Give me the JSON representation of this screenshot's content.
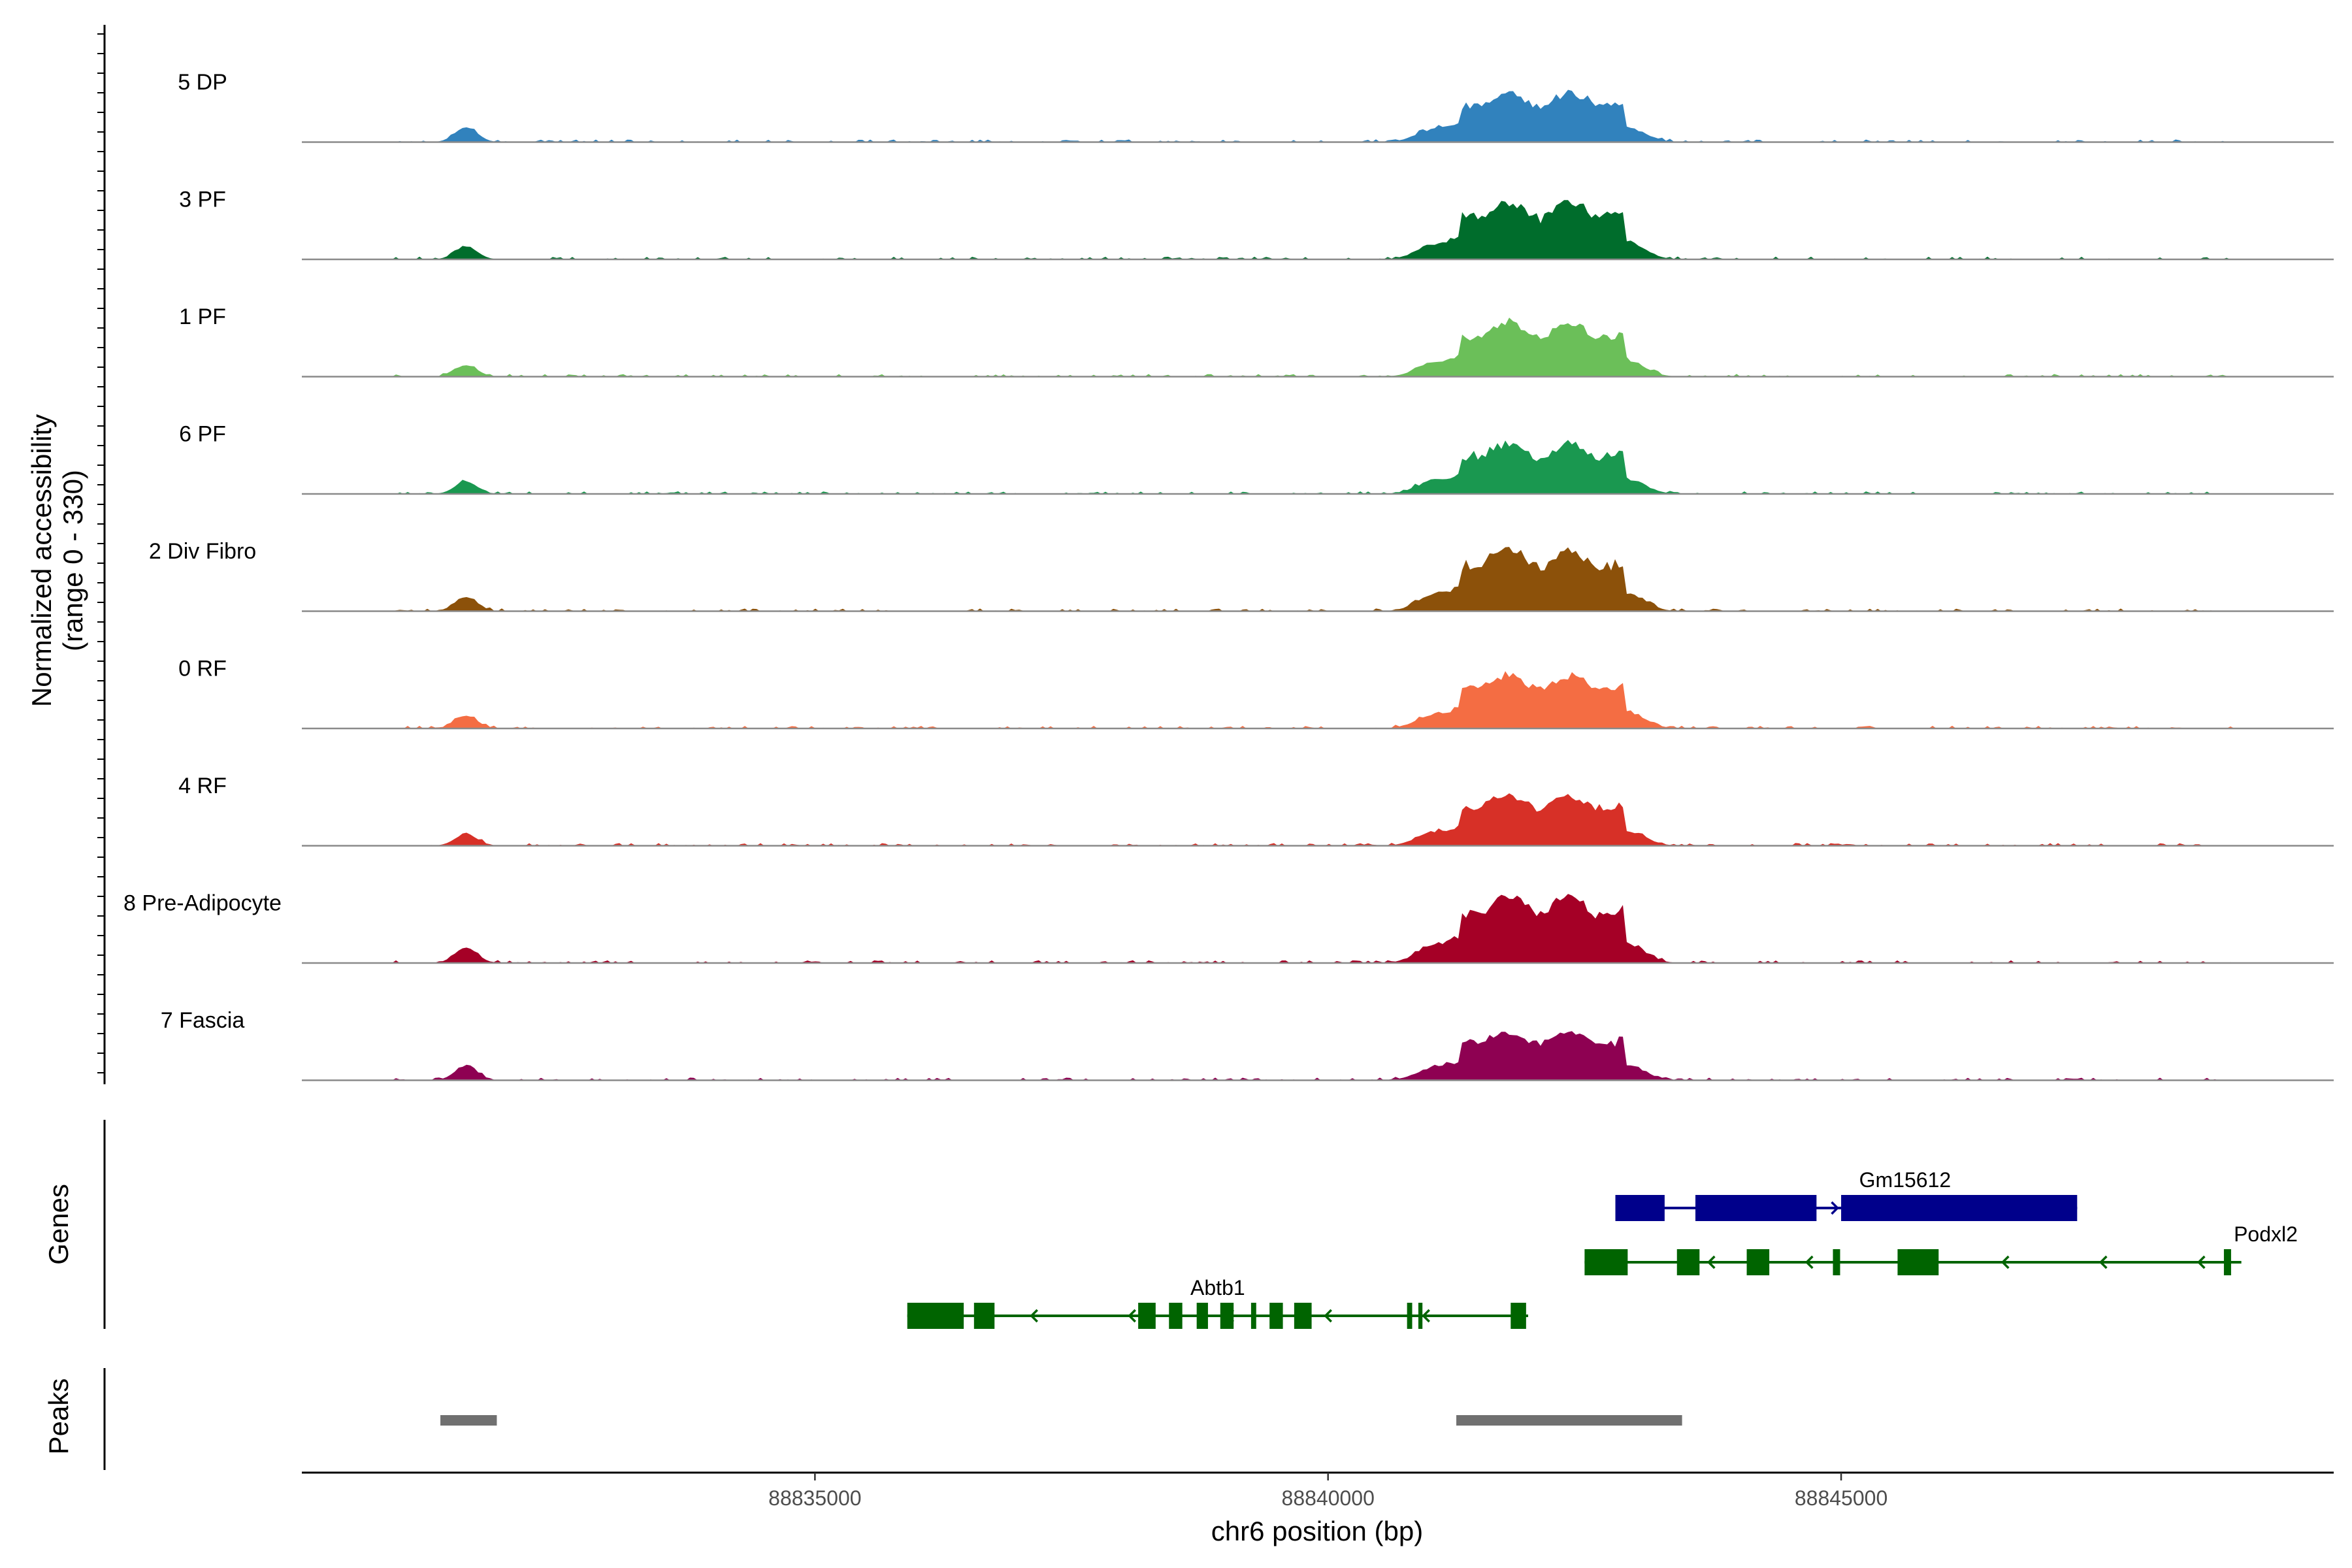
{
  "chart_data": {
    "type": "area",
    "title": "",
    "xlabel": "chr6 position (bp)",
    "xlim": [
      88830000,
      88849800
    ],
    "x_ticks": [
      "88835000",
      "88840000",
      "88845000"
    ],
    "coverage_axis": {
      "label_line1": "Normalized accessibility",
      "label_line2": "(range 0 - 330)",
      "ylim": [
        0,
        330
      ]
    },
    "tracks": [
      {
        "name": "5 DP",
        "color": "#3182bd",
        "peak_max": 165,
        "side_peak": 44
      },
      {
        "name": "3 PF",
        "color": "#006d2c",
        "peak_max": 190,
        "side_peak": 38
      },
      {
        "name": "1 PF",
        "color": "#6bbf59",
        "peak_max": 180,
        "side_peak": 34
      },
      {
        "name": "6 PF",
        "color": "#1a9850",
        "peak_max": 168,
        "side_peak": 36
      },
      {
        "name": "2 Div Fibro",
        "color": "#8c510a",
        "peak_max": 202,
        "side_peak": 42
      },
      {
        "name": "0 RF",
        "color": "#f46d43",
        "peak_max": 180,
        "side_peak": 38
      },
      {
        "name": "4 RF",
        "color": "#d73027",
        "peak_max": 170,
        "side_peak": 34
      },
      {
        "name": "8 Pre-Adipocyte",
        "color": "#a50026",
        "peak_max": 222,
        "side_peak": 46
      },
      {
        "name": "7 Fascia",
        "color": "#8e0152",
        "peak_max": 166,
        "side_peak": 42
      }
    ],
    "genes_panel": {
      "label": "Genes",
      "genes": [
        {
          "name": "Gm15612",
          "strand": "+",
          "color": "#00008b",
          "row": 0,
          "start": 88842800,
          "end": 88847300,
          "exons": [
            [
              88842800,
              88843280
            ],
            [
              88843580,
              88844760
            ],
            [
              88845000,
              88847300
            ]
          ]
        },
        {
          "name": "Podxl2",
          "strand": "-",
          "color": "#006400",
          "row": 1,
          "start": 88842500,
          "end": 88848900,
          "exons": [
            [
              88842500,
              88842920
            ],
            [
              88843400,
              88843620
            ],
            [
              88844080,
              88844300
            ],
            [
              88844920,
              88844990
            ],
            [
              88845550,
              88845950
            ],
            [
              88848730,
              88848800
            ]
          ]
        },
        {
          "name": "Abtb1",
          "strand": "-",
          "color": "#006400",
          "row": 2,
          "start": 88835900,
          "end": 88841950,
          "exons": [
            [
              88835900,
              88836450
            ],
            [
              88836550,
              88836750
            ],
            [
              88838150,
              88838320
            ],
            [
              88838450,
              88838580
            ],
            [
              88838720,
              88838830
            ],
            [
              88838950,
              88839080
            ],
            [
              88839250,
              88839300
            ],
            [
              88839430,
              88839560
            ],
            [
              88839670,
              88839840
            ],
            [
              88840770,
              88840820
            ],
            [
              88840880,
              88840920
            ],
            [
              88841780,
              88841930
            ]
          ]
        }
      ]
    },
    "peaks_panel": {
      "label": "Peaks",
      "color": "#707070",
      "peaks": [
        [
          88831350,
          88831900
        ],
        [
          88841250,
          88843450
        ]
      ]
    }
  }
}
